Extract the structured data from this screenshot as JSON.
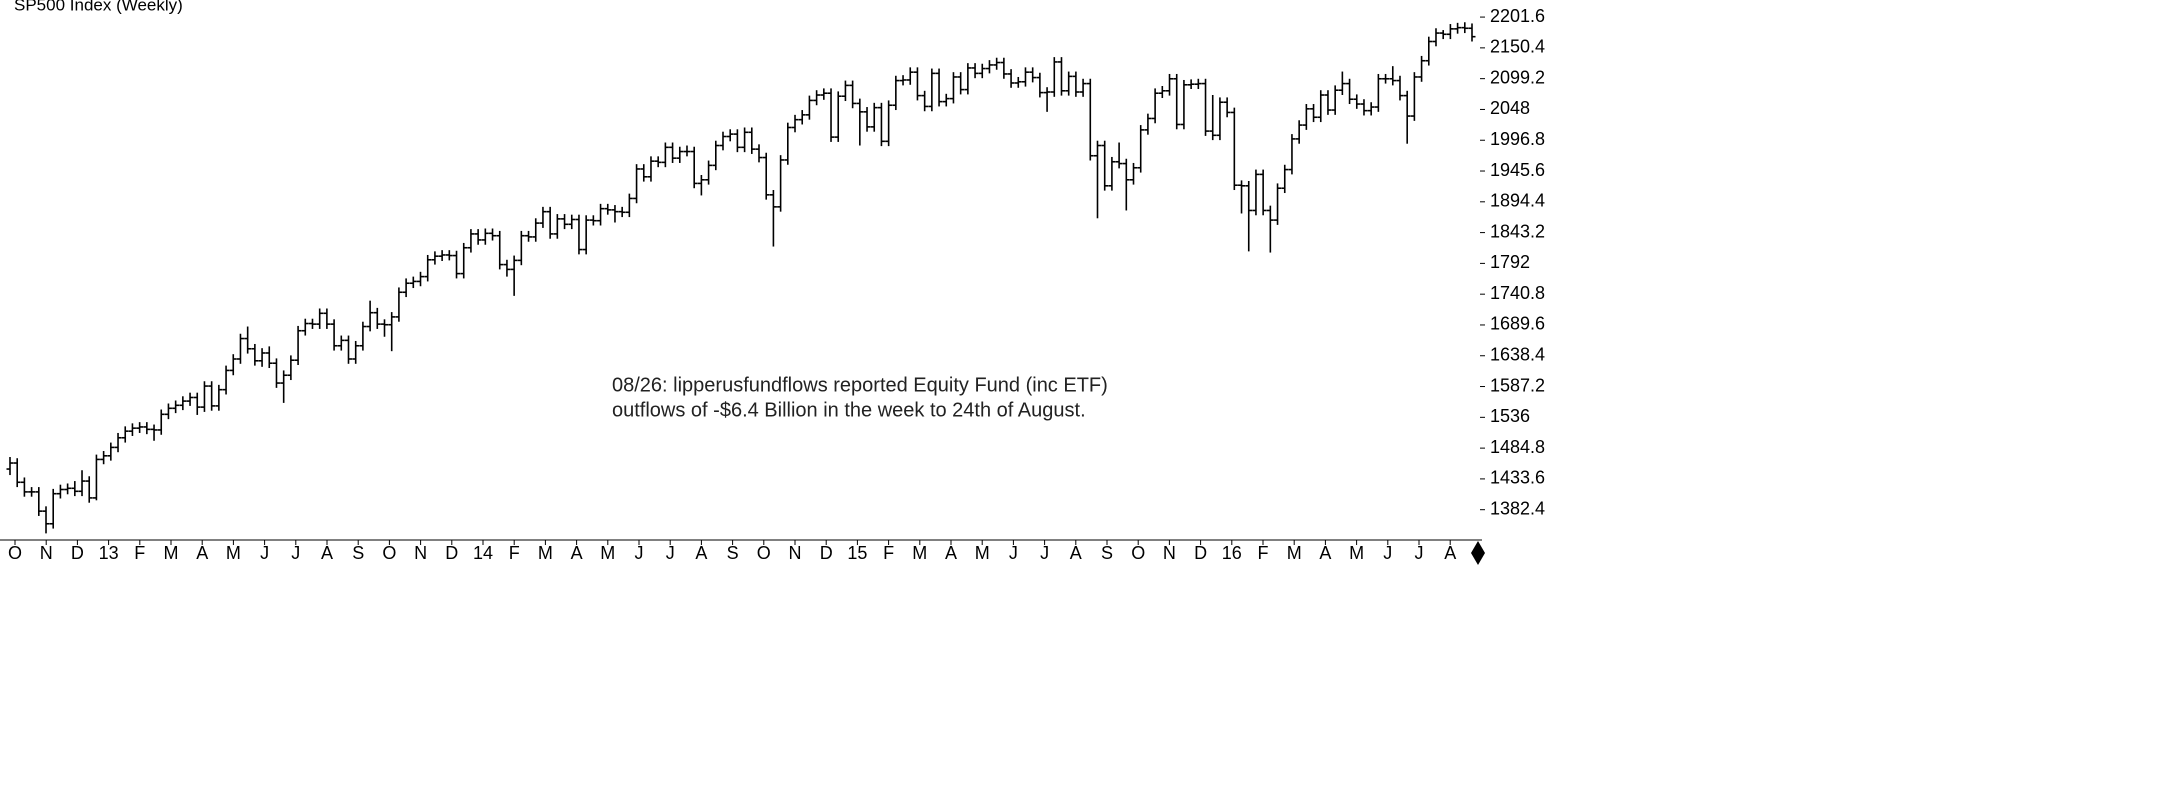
{
  "chart_data": {
    "type": "ohlc",
    "title": "SP500 Index (Weekly)",
    "annotation": [
      "08/26: lipperusfundflows reported Equity Fund (inc ETF)",
      "outflows of -$6.4 Billion in the week to 24th of August."
    ],
    "categories": [
      "O",
      "N",
      "D",
      "13",
      "F",
      "M",
      "A",
      "M",
      "J",
      "J",
      "A",
      "S",
      "O",
      "N",
      "D",
      "14",
      "F",
      "M",
      "A",
      "M",
      "J",
      "J",
      "A",
      "S",
      "O",
      "N",
      "D",
      "15",
      "F",
      "M",
      "A",
      "M",
      "J",
      "J",
      "A",
      "S",
      "O",
      "N",
      "D",
      "16",
      "F",
      "M",
      "A",
      "M",
      "J",
      "J",
      "A"
    ],
    "ylim": [
      1332,
      2230
    ],
    "yticks": [
      1382.4,
      1433.6,
      1484.8,
      1536,
      1587.2,
      1638.4,
      1689.6,
      1740.8,
      1792,
      1843.2,
      1894.4,
      1945.6,
      1996.8,
      2048,
      2099.2,
      2150.4,
      2201.6
    ],
    "color": "#000000",
    "ohlc": [
      [
        1450,
        1470,
        1440,
        1460
      ],
      [
        1460,
        1468,
        1420,
        1428
      ],
      [
        1428,
        1436,
        1404,
        1412
      ],
      [
        1412,
        1420,
        1404,
        1412
      ],
      [
        1412,
        1420,
        1372,
        1380
      ],
      [
        1380,
        1388,
        1343,
        1359
      ],
      [
        1359,
        1417,
        1351,
        1409
      ],
      [
        1409,
        1424,
        1401,
        1416
      ],
      [
        1416,
        1426,
        1408,
        1418
      ],
      [
        1418,
        1430,
        1405,
        1413
      ],
      [
        1413,
        1448,
        1405,
        1430
      ],
      [
        1430,
        1438,
        1394,
        1402
      ],
      [
        1402,
        1474,
        1398,
        1466
      ],
      [
        1466,
        1480,
        1458,
        1472
      ],
      [
        1472,
        1494,
        1464,
        1486
      ],
      [
        1486,
        1510,
        1478,
        1502
      ],
      [
        1502,
        1521,
        1494,
        1513
      ],
      [
        1513,
        1526,
        1505,
        1518
      ],
      [
        1518,
        1528,
        1510,
        1520
      ],
      [
        1520,
        1528,
        1508,
        1516
      ],
      [
        1516,
        1524,
        1497,
        1515
      ],
      [
        1515,
        1549,
        1507,
        1541
      ],
      [
        1541,
        1559,
        1533,
        1551
      ],
      [
        1551,
        1564,
        1543,
        1556
      ],
      [
        1556,
        1571,
        1548,
        1563
      ],
      [
        1563,
        1577,
        1555,
        1569
      ],
      [
        1569,
        1577,
        1540,
        1553
      ],
      [
        1553,
        1596,
        1545,
        1588
      ],
      [
        1588,
        1596,
        1547,
        1555
      ],
      [
        1555,
        1590,
        1547,
        1582
      ],
      [
        1582,
        1622,
        1574,
        1614
      ],
      [
        1614,
        1641,
        1606,
        1633
      ],
      [
        1633,
        1675,
        1625,
        1667
      ],
      [
        1667,
        1687,
        1642,
        1650
      ],
      [
        1650,
        1658,
        1622,
        1630
      ],
      [
        1630,
        1651,
        1620,
        1643
      ],
      [
        1643,
        1654,
        1618,
        1626
      ],
      [
        1626,
        1634,
        1585,
        1593
      ],
      [
        1593,
        1614,
        1560,
        1606
      ],
      [
        1606,
        1639,
        1598,
        1631
      ],
      [
        1631,
        1688,
        1623,
        1680
      ],
      [
        1680,
        1700,
        1672,
        1692
      ],
      [
        1692,
        1700,
        1683,
        1691
      ],
      [
        1691,
        1717,
        1683,
        1709
      ],
      [
        1709,
        1717,
        1683,
        1691
      ],
      [
        1691,
        1699,
        1647,
        1655
      ],
      [
        1655,
        1672,
        1647,
        1664
      ],
      [
        1664,
        1672,
        1625,
        1633
      ],
      [
        1633,
        1663,
        1625,
        1655
      ],
      [
        1655,
        1695,
        1647,
        1687
      ],
      [
        1687,
        1730,
        1679,
        1710
      ],
      [
        1710,
        1718,
        1683,
        1691
      ],
      [
        1691,
        1699,
        1670,
        1690
      ],
      [
        1690,
        1711,
        1646,
        1703
      ],
      [
        1703,
        1752,
        1695,
        1744
      ],
      [
        1744,
        1767,
        1736,
        1759
      ],
      [
        1759,
        1770,
        1751,
        1762
      ],
      [
        1762,
        1778,
        1754,
        1770
      ],
      [
        1770,
        1806,
        1762,
        1798
      ],
      [
        1798,
        1812,
        1790,
        1804
      ],
      [
        1804,
        1814,
        1796,
        1806
      ],
      [
        1806,
        1814,
        1797,
        1805
      ],
      [
        1805,
        1813,
        1767,
        1775
      ],
      [
        1775,
        1826,
        1767,
        1818
      ],
      [
        1818,
        1849,
        1810,
        1841
      ],
      [
        1841,
        1849,
        1823,
        1831
      ],
      [
        1831,
        1850,
        1823,
        1842
      ],
      [
        1842,
        1850,
        1830,
        1838
      ],
      [
        1838,
        1846,
        1782,
        1790
      ],
      [
        1790,
        1798,
        1770,
        1782
      ],
      [
        1782,
        1805,
        1738,
        1797
      ],
      [
        1797,
        1846,
        1789,
        1838
      ],
      [
        1838,
        1846,
        1828,
        1836
      ],
      [
        1836,
        1867,
        1828,
        1859
      ],
      [
        1859,
        1886,
        1851,
        1878
      ],
      [
        1878,
        1886,
        1833,
        1841
      ],
      [
        1841,
        1874,
        1833,
        1866
      ],
      [
        1866,
        1874,
        1849,
        1857
      ],
      [
        1857,
        1873,
        1849,
        1865
      ],
      [
        1865,
        1873,
        1807,
        1815
      ],
      [
        1815,
        1872,
        1807,
        1864
      ],
      [
        1864,
        1872,
        1855,
        1863
      ],
      [
        1863,
        1891,
        1855,
        1883
      ],
      [
        1883,
        1891,
        1873,
        1881
      ],
      [
        1881,
        1889,
        1860,
        1878
      ],
      [
        1878,
        1886,
        1869,
        1877
      ],
      [
        1877,
        1908,
        1869,
        1900
      ],
      [
        1900,
        1957,
        1892,
        1949
      ],
      [
        1949,
        1957,
        1928,
        1936
      ],
      [
        1936,
        1970,
        1928,
        1962
      ],
      [
        1962,
        1970,
        1952,
        1960
      ],
      [
        1960,
        1993,
        1952,
        1985
      ],
      [
        1985,
        1993,
        1959,
        1967
      ],
      [
        1967,
        1986,
        1959,
        1978
      ],
      [
        1978,
        1988,
        1970,
        1978
      ],
      [
        1978,
        1986,
        1917,
        1925
      ],
      [
        1925,
        1939,
        1905,
        1931
      ],
      [
        1931,
        1963,
        1923,
        1955
      ],
      [
        1955,
        1996,
        1947,
        1988
      ],
      [
        1988,
        2011,
        1980,
        2003
      ],
      [
        2003,
        2015,
        1995,
        2007
      ],
      [
        2007,
        2015,
        1977,
        1985
      ],
      [
        1985,
        2018,
        1977,
        2010
      ],
      [
        2010,
        2018,
        1974,
        1982
      ],
      [
        1982,
        1990,
        1960,
        1968
      ],
      [
        1968,
        1976,
        1898,
        1906
      ],
      [
        1906,
        1914,
        1820,
        1886
      ],
      [
        1886,
        1972,
        1878,
        1964
      ],
      [
        1964,
        2026,
        1956,
        2018
      ],
      [
        2018,
        2039,
        2010,
        2031
      ],
      [
        2031,
        2047,
        2023,
        2039
      ],
      [
        2039,
        2071,
        2031,
        2063
      ],
      [
        2063,
        2080,
        2055,
        2072
      ],
      [
        2072,
        2083,
        2064,
        2075
      ],
      [
        2075,
        2083,
        1994,
        2002
      ],
      [
        2002,
        2078,
        1994,
        2070
      ],
      [
        2070,
        2096,
        2062,
        2088
      ],
      [
        2088,
        2096,
        2050,
        2058
      ],
      [
        2058,
        2066,
        1988,
        2044
      ],
      [
        2044,
        2052,
        2011,
        2019
      ],
      [
        2019,
        2059,
        2011,
        2051
      ],
      [
        2051,
        2059,
        1987,
        1995
      ],
      [
        1995,
        2063,
        1987,
        2055
      ],
      [
        2055,
        2104,
        2047,
        2096
      ],
      [
        2096,
        2105,
        2088,
        2097
      ],
      [
        2097,
        2118,
        2089,
        2110
      ],
      [
        2110,
        2118,
        2063,
        2071
      ],
      [
        2071,
        2079,
        2045,
        2053
      ],
      [
        2053,
        2116,
        2045,
        2108
      ],
      [
        2108,
        2116,
        2053,
        2061
      ],
      [
        2061,
        2074,
        2053,
        2066
      ],
      [
        2066,
        2110,
        2058,
        2102
      ],
      [
        2102,
        2110,
        2073,
        2081
      ],
      [
        2081,
        2125,
        2073,
        2117
      ],
      [
        2117,
        2125,
        2100,
        2108
      ],
      [
        2108,
        2124,
        2100,
        2116
      ],
      [
        2116,
        2130,
        2108,
        2122
      ],
      [
        2122,
        2134,
        2114,
        2126
      ],
      [
        2126,
        2134,
        2099,
        2107
      ],
      [
        2107,
        2115,
        2084,
        2092
      ],
      [
        2092,
        2102,
        2084,
        2094
      ],
      [
        2094,
        2118,
        2086,
        2110
      ],
      [
        2110,
        2118,
        2093,
        2101
      ],
      [
        2101,
        2109,
        2068,
        2076
      ],
      [
        2076,
        2085,
        2044,
        2077
      ],
      [
        2077,
        2135,
        2069,
        2127
      ],
      [
        2127,
        2135,
        2071,
        2079
      ],
      [
        2079,
        2111,
        2071,
        2103
      ],
      [
        2103,
        2111,
        2069,
        2077
      ],
      [
        2077,
        2099,
        2069,
        2091
      ],
      [
        2091,
        2099,
        1963,
        1971
      ],
      [
        1971,
        1996,
        1867,
        1988
      ],
      [
        1988,
        1996,
        1913,
        1921
      ],
      [
        1921,
        1969,
        1913,
        1961
      ],
      [
        1961,
        1993,
        1950,
        1958
      ],
      [
        1958,
        1966,
        1880,
        1931
      ],
      [
        1931,
        1959,
        1923,
        1951
      ],
      [
        1951,
        2022,
        1943,
        2014
      ],
      [
        2014,
        2041,
        2006,
        2033
      ],
      [
        2033,
        2083,
        2025,
        2075
      ],
      [
        2075,
        2087,
        2067,
        2079
      ],
      [
        2079,
        2107,
        2071,
        2099
      ],
      [
        2099,
        2107,
        2015,
        2023
      ],
      [
        2023,
        2097,
        2015,
        2089
      ],
      [
        2089,
        2098,
        2082,
        2090
      ],
      [
        2090,
        2099,
        2082,
        2091
      ],
      [
        2091,
        2099,
        2004,
        2012
      ],
      [
        2012,
        2072,
        1997,
        2005
      ],
      [
        2005,
        2068,
        1997,
        2060
      ],
      [
        2060,
        2068,
        2035,
        2043
      ],
      [
        2043,
        2051,
        1914,
        1922
      ],
      [
        1922,
        1930,
        1875,
        1921
      ],
      [
        1921,
        1929,
        1812,
        1880
      ],
      [
        1880,
        1948,
        1872,
        1940
      ],
      [
        1940,
        1948,
        1872,
        1880
      ],
      [
        1880,
        1888,
        1810,
        1864
      ],
      [
        1864,
        1925,
        1856,
        1917
      ],
      [
        1917,
        1956,
        1909,
        1948
      ],
      [
        1948,
        2007,
        1940,
        1999
      ],
      [
        1999,
        2030,
        1991,
        2022
      ],
      [
        2022,
        2057,
        2014,
        2049
      ],
      [
        2049,
        2057,
        2027,
        2035
      ],
      [
        2035,
        2080,
        2027,
        2072
      ],
      [
        2072,
        2080,
        2039,
        2047
      ],
      [
        2047,
        2088,
        2039,
        2080
      ],
      [
        2080,
        2111,
        2072,
        2091
      ],
      [
        2091,
        2099,
        2057,
        2065
      ],
      [
        2065,
        2073,
        2049,
        2057
      ],
      [
        2057,
        2065,
        2038,
        2046
      ],
      [
        2046,
        2060,
        2038,
        2052
      ],
      [
        2052,
        2107,
        2044,
        2099
      ],
      [
        2099,
        2107,
        2091,
        2099
      ],
      [
        2099,
        2120,
        2088,
        2096
      ],
      [
        2096,
        2104,
        2063,
        2071
      ],
      [
        2071,
        2079,
        1991,
        2037
      ],
      [
        2037,
        2110,
        2029,
        2102
      ],
      [
        2102,
        2137,
        2094,
        2129
      ],
      [
        2129,
        2169,
        2121,
        2161
      ],
      [
        2161,
        2183,
        2153,
        2175
      ],
      [
        2175,
        2180,
        2165,
        2173
      ],
      [
        2173,
        2190,
        2165,
        2182
      ],
      [
        2182,
        2192,
        2174,
        2184
      ],
      [
        2184,
        2193,
        2175,
        2183
      ],
      [
        2183,
        2191,
        2161,
        2169
      ]
    ]
  }
}
